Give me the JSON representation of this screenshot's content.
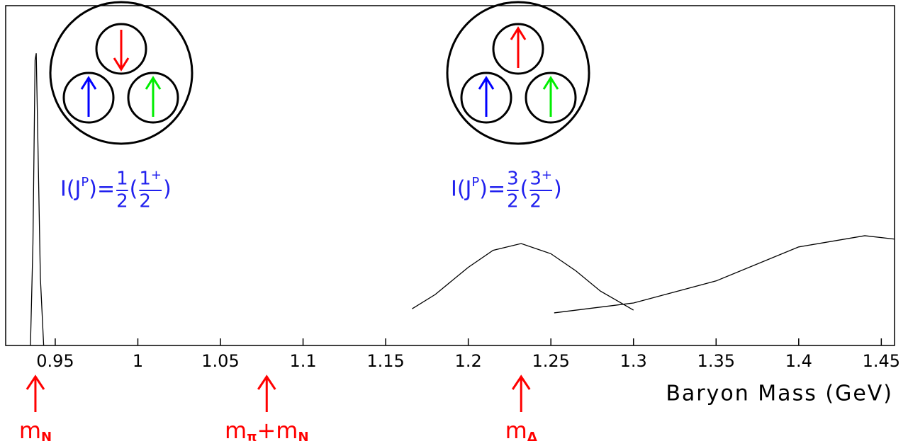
{
  "chart_data": {
    "type": "line",
    "x_label": "Baryon Mass (GeV)",
    "xlim": [
      0.92,
      1.458
    ],
    "ylim": [
      0,
      1
    ],
    "xticks": [
      0.95,
      1,
      1.05,
      1.1,
      1.15,
      1.2,
      1.25,
      1.3,
      1.35,
      1.4,
      1.45
    ],
    "series": [
      {
        "color": "#000000",
        "x": [
          0.935,
          0.9365,
          0.9378,
          0.9385,
          0.9395,
          0.941,
          0.943
        ],
        "values": [
          0,
          0.3,
          0.84,
          0.86,
          0.6,
          0.2,
          0
        ]
      },
      {
        "color": "#000000",
        "x": [
          1.166,
          1.18,
          1.2,
          1.215,
          1.232,
          1.25,
          1.265,
          1.28,
          1.3
        ],
        "values": [
          0.108,
          0.15,
          0.23,
          0.28,
          0.3,
          0.27,
          0.22,
          0.16,
          0.104
        ]
      },
      {
        "color": "#000000",
        "x": [
          1.252,
          1.3,
          1.35,
          1.4,
          1.44,
          1.458
        ],
        "values": [
          0.096,
          0.125,
          0.19,
          0.29,
          0.323,
          0.313
        ]
      }
    ],
    "markers": [
      {
        "x": 0.938,
        "color": "#ff0000",
        "parts": [
          "m",
          "N"
        ]
      },
      {
        "x": 1.078,
        "color": "#ff0000",
        "parts": [
          "m",
          "π",
          "+m",
          "N"
        ]
      },
      {
        "x": 1.232,
        "color": "#ff0000",
        "parts": [
          "m",
          "Δ"
        ]
      }
    ],
    "quantum_labels": [
      {
        "color": "#2020ee",
        "prefix": "I(J",
        "sup": "P",
        "eq": ")=",
        "num": "1",
        "den": "2",
        "open": "(",
        "num2": "1",
        "sup2": "+",
        "den2": "2",
        "close": ")"
      },
      {
        "color": "#2020ee",
        "prefix": "I(J",
        "sup": "P",
        "eq": ")=",
        "num": "3",
        "den": "2",
        "open": "(",
        "num2": "3",
        "sup2": "+",
        "den2": "2",
        "close": ")"
      }
    ]
  }
}
